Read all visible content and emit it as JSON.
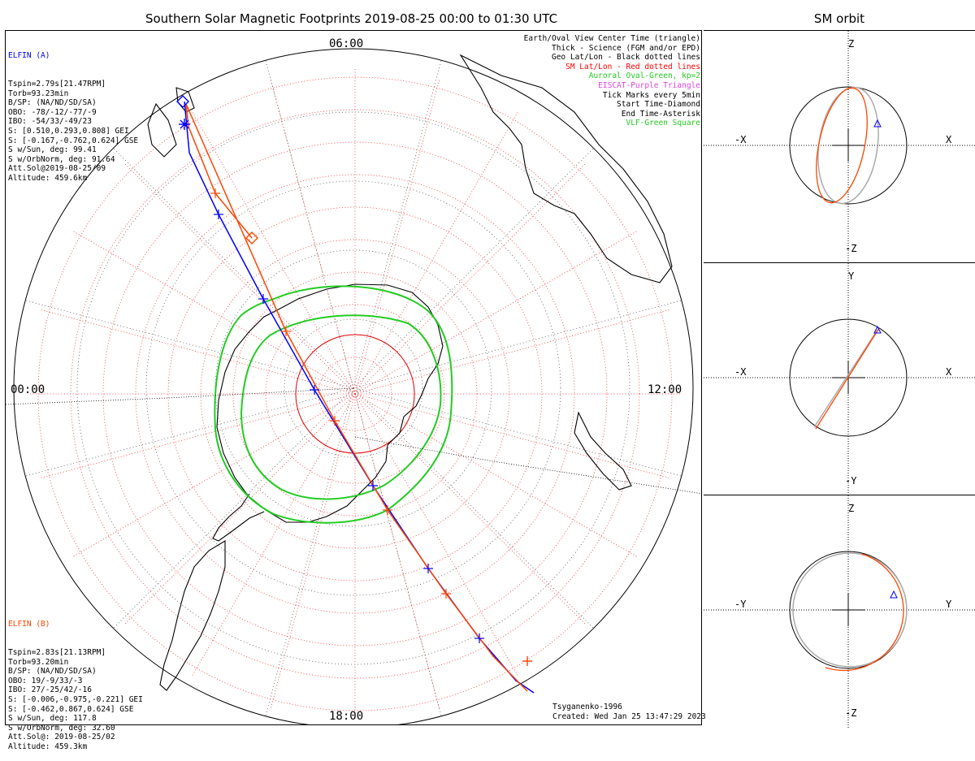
{
  "title": "Southern Solar Magnetic Footprints 2019-08-25 00:00 to 01:30 UTC",
  "orbit_title": "SM orbit",
  "map": {
    "time_labels": {
      "top": "06:00",
      "left": "00:00",
      "right": "12:00",
      "bottom": "18:00"
    }
  },
  "elfin_a": {
    "name": "ELFIN (A)",
    "color": "#0000ff",
    "lines": [
      "Tspin=2.79s[21.47RPM]",
      "Torb=93.23min",
      "B/SP: (NA/ND/SD/SA)",
      "OBO: -78/-12/-77/-9",
      "IBO: -54/33/-49/23",
      "S: [0.510,0.293,0.808] GEI",
      "S: [-0.167,-0.762,0.624] GSE",
      "S w/Sun, deg: 99.41",
      "S w/OrbNorm, deg: 91.64",
      "Att.Sol@2019-08-25/09",
      "Altitude: 459.6km"
    ]
  },
  "elfin_b": {
    "name": "ELFIN (B)",
    "color": "#ff4500",
    "lines": [
      "Tspin=2.83s[21.13RPM]",
      "Torb=93.20min",
      "B/SP: (NA/ND/SD/SA)",
      "OBO: 19/-9/33/-3",
      "IBO: 27/-25/42/-16",
      "S: [-0.006,-0.975,-0.221] GEI",
      "S: [-0.462,0.867,0.624] GSE",
      "S w/Sun, deg: 117.8",
      "S w/OrbNorm, deg: 32.60",
      "Att.Sol@: 2019-08-25/02",
      "Altitude: 459.3km"
    ]
  },
  "legend": [
    {
      "text": "Earth/Oval View Center Time (triangle)",
      "color": "#000000"
    },
    {
      "text": "Thick - Science (FGM and/or EPD)",
      "color": "#000000"
    },
    {
      "text": "Geo Lat/Lon - Black dotted lines",
      "color": "#000000"
    },
    {
      "text": "SM Lat/Lon - Red dotted lines",
      "color": "#ff0000"
    },
    {
      "text": "Auroral Oval-Green, kp=2",
      "color": "#22cc22"
    },
    {
      "text": "EISCAT-Purple Triangle",
      "color": "#dd44dd"
    },
    {
      "text": "Tick Marks every 5min",
      "color": "#000000"
    },
    {
      "text": "Start Time-Diamond",
      "color": "#000000"
    },
    {
      "text": "End Time-Asterisk",
      "color": "#000000"
    },
    {
      "text": "VLF-Green Square",
      "color": "#22cc22"
    }
  ],
  "credit": {
    "model": "Tsyganenko-1996",
    "created": "Created: Wed Jan 25 13:47:29 2023"
  },
  "orbit_panels": [
    {
      "left": "-X",
      "right": "X",
      "top": "Z",
      "bottom": "-Z"
    },
    {
      "left": "-X",
      "right": "X",
      "top": "Y",
      "bottom": "-Y"
    },
    {
      "left": "-Y",
      "right": "Y",
      "top": "Z",
      "bottom": "-Z"
    }
  ]
}
